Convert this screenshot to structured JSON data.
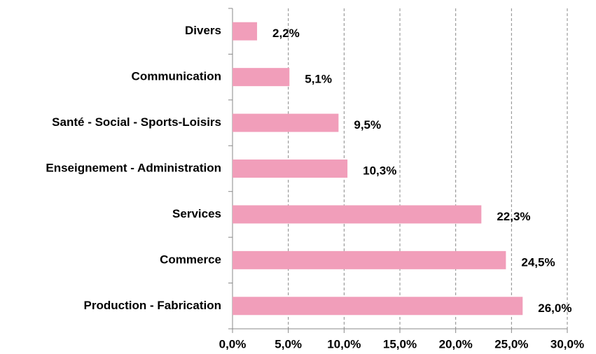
{
  "chart_data": {
    "type": "bar",
    "orientation": "horizontal",
    "categories": [
      "Divers",
      "Communication",
      "Santé - Social - Sports-Loisirs",
      "Enseignement - Administration",
      "Services",
      "Commerce",
      "Production - Fabrication"
    ],
    "values": [
      2.2,
      5.1,
      9.5,
      10.3,
      22.3,
      24.5,
      26.0
    ],
    "value_labels": [
      "2,2%",
      "5,1%",
      "9,5%",
      "10,3%",
      "22,3%",
      "24,5%",
      "26,0%"
    ],
    "color": "#f19eba",
    "xlim": [
      0,
      30
    ],
    "xticks": [
      {
        "value": 0,
        "label": "0,0%"
      },
      {
        "value": 5,
        "label": "5,0%"
      },
      {
        "value": 10,
        "label": "10,0%"
      },
      {
        "value": 15,
        "label": "15,0%"
      },
      {
        "value": 20,
        "label": "20,0%"
      },
      {
        "value": 25,
        "label": "25,0%"
      },
      {
        "value": 30,
        "label": "30,0%"
      }
    ],
    "grid": true
  }
}
